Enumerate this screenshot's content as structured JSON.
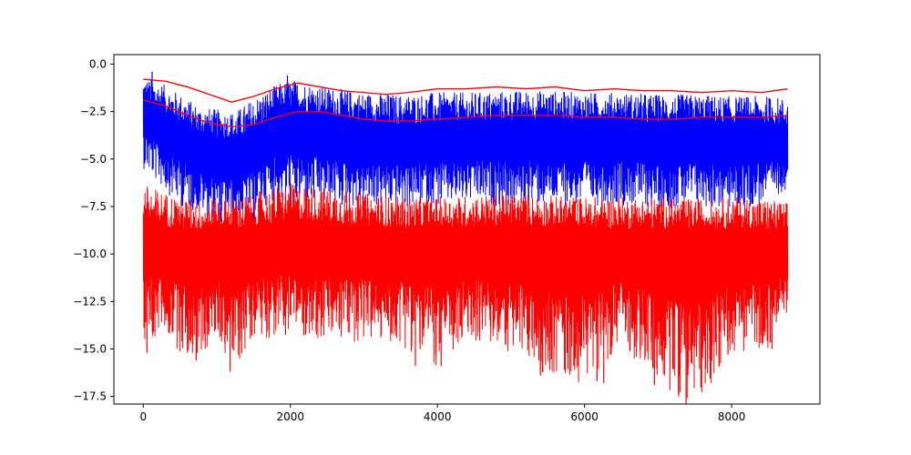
{
  "chart_data": {
    "type": "line",
    "title": "",
    "xlabel": "",
    "ylabel": "",
    "xlim": [
      -400,
      9200
    ],
    "ylim": [
      -17.9,
      0.5
    ],
    "xticks": [
      0,
      2000,
      4000,
      6000,
      8000
    ],
    "xtick_labels": [
      "0",
      "2000",
      "4000",
      "6000",
      "8000"
    ],
    "yticks": [
      0.0,
      -2.5,
      -5.0,
      -7.5,
      -10.0,
      -12.5,
      -15.0,
      -17.5
    ],
    "ytick_labels": [
      "0.0",
      "−2.5",
      "−5.0",
      "−7.5",
      "−10.0",
      "−12.5",
      "−15.0",
      "−17.5"
    ],
    "grid": false,
    "n_points": 8760,
    "series": [
      {
        "color": "#0000ff",
        "style": "noisy band",
        "x": [
          0,
          250,
          500,
          750,
          1000,
          1250,
          1500,
          1750,
          2000,
          2500,
          3000,
          3500,
          4000,
          4500,
          5000,
          5500,
          6000,
          6500,
          7000,
          7500,
          8000,
          8500,
          8760
        ],
        "center": [
          -2.6,
          -3.2,
          -3.8,
          -4.4,
          -4.7,
          -4.8,
          -4.4,
          -3.6,
          -3.2,
          -3.5,
          -3.8,
          -4.1,
          -3.9,
          -3.8,
          -3.8,
          -3.7,
          -3.8,
          -3.8,
          -4.0,
          -3.9,
          -4.0,
          -4.0,
          -4.0
        ],
        "max_envelope": [
          -0.7,
          -1.0,
          -1.6,
          -2.2,
          -2.4,
          -2.5,
          -1.8,
          -1.2,
          -0.8,
          -1.2,
          -1.5,
          -1.6,
          -1.5,
          -1.5,
          -1.4,
          -1.4,
          -1.5,
          -1.5,
          -1.6,
          -1.6,
          -1.7,
          -1.7,
          -1.8
        ],
        "min_envelope": [
          -5.5,
          -6.5,
          -7.5,
          -7.8,
          -8.2,
          -8.5,
          -7.8,
          -7.2,
          -7.5,
          -7.6,
          -7.5,
          -7.6,
          -7.5,
          -7.3,
          -7.6,
          -7.4,
          -7.5,
          -7.4,
          -7.6,
          -7.5,
          -7.7,
          -7.3,
          -6.5
        ]
      },
      {
        "color": "#ff0000",
        "style": "noisy band",
        "x": [
          0,
          250,
          500,
          750,
          1000,
          1250,
          1500,
          1750,
          2000,
          2500,
          3000,
          3500,
          4000,
          4500,
          5000,
          5500,
          6000,
          6500,
          7000,
          7500,
          8000,
          8500,
          8760
        ],
        "center": [
          -9.3,
          -9.5,
          -9.6,
          -9.6,
          -9.6,
          -9.6,
          -9.5,
          -9.4,
          -9.3,
          -9.4,
          -9.5,
          -9.6,
          -9.5,
          -9.5,
          -9.5,
          -9.5,
          -9.6,
          -9.6,
          -9.6,
          -9.6,
          -9.6,
          -9.7,
          -9.6
        ],
        "max_envelope": [
          -6.3,
          -6.7,
          -7.0,
          -7.2,
          -7.0,
          -7.0,
          -6.8,
          -6.5,
          -6.3,
          -6.5,
          -6.8,
          -7.0,
          -7.0,
          -6.9,
          -6.8,
          -6.9,
          -7.0,
          -7.0,
          -7.0,
          -7.1,
          -7.0,
          -7.1,
          -7.3
        ],
        "min_envelope": [
          -15.3,
          -14.0,
          -15.2,
          -15.6,
          -14.5,
          -16.2,
          -14.2,
          -14.5,
          -14.2,
          -14.7,
          -14.6,
          -14.8,
          -16.0,
          -14.6,
          -15.2,
          -16.4,
          -16.8,
          -14.8,
          -16.9,
          -18.0,
          -15.2,
          -15.0,
          -13.0
        ]
      },
      {
        "color": "#ff0000",
        "style": "thin line",
        "x": [
          0,
          300,
          600,
          900,
          1200,
          1500,
          1800,
          2100,
          2400,
          2700,
          3000,
          3300,
          3600,
          4000,
          4400,
          4800,
          5200,
          5600,
          6000,
          6400,
          6800,
          7200,
          7600,
          8000,
          8400,
          8760
        ],
        "y": [
          -0.8,
          -0.9,
          -1.2,
          -1.6,
          -2.0,
          -1.7,
          -1.3,
          -1.0,
          -1.2,
          -1.4,
          -1.5,
          -1.6,
          -1.5,
          -1.3,
          -1.3,
          -1.2,
          -1.3,
          -1.2,
          -1.4,
          -1.3,
          -1.4,
          -1.4,
          -1.5,
          -1.4,
          -1.5,
          -1.3
        ]
      },
      {
        "color": "#ff0000",
        "style": "thin line",
        "x": [
          0,
          300,
          600,
          900,
          1200,
          1500,
          1800,
          2100,
          2400,
          2700,
          3000,
          3300,
          3600,
          4000,
          4400,
          4800,
          5200,
          5600,
          6000,
          6400,
          6800,
          7200,
          7600,
          8000,
          8400,
          8760
        ],
        "y": [
          -1.9,
          -2.2,
          -2.7,
          -3.1,
          -3.3,
          -3.2,
          -2.8,
          -2.5,
          -2.5,
          -2.7,
          -2.9,
          -3.0,
          -3.0,
          -2.9,
          -2.8,
          -2.7,
          -2.7,
          -2.7,
          -2.8,
          -2.8,
          -2.9,
          -2.9,
          -2.8,
          -2.8,
          -2.8,
          -2.7
        ]
      }
    ],
    "spikes": [
      {
        "color": "#ff0000",
        "points": [
          [
            50,
            -15.2
          ],
          [
            140,
            -14.1
          ],
          [
            600,
            -15.2
          ],
          [
            720,
            -15.6
          ],
          [
            1180,
            -16.2
          ],
          [
            3700,
            -15.9
          ],
          [
            4050,
            -15.9
          ],
          [
            5400,
            -16.4
          ],
          [
            6170,
            -16.7
          ],
          [
            6260,
            -16.8
          ],
          [
            6950,
            -16.9
          ],
          [
            7380,
            -18.0
          ],
          [
            7950,
            -15.3
          ],
          [
            8550,
            -15.0
          ]
        ]
      },
      {
        "color": "#0000ff",
        "points": [
          [
            120,
            -0.4
          ],
          [
            1960,
            -0.6
          ],
          [
            1060,
            -8.3
          ],
          [
            1500,
            -8.2
          ]
        ]
      }
    ]
  }
}
